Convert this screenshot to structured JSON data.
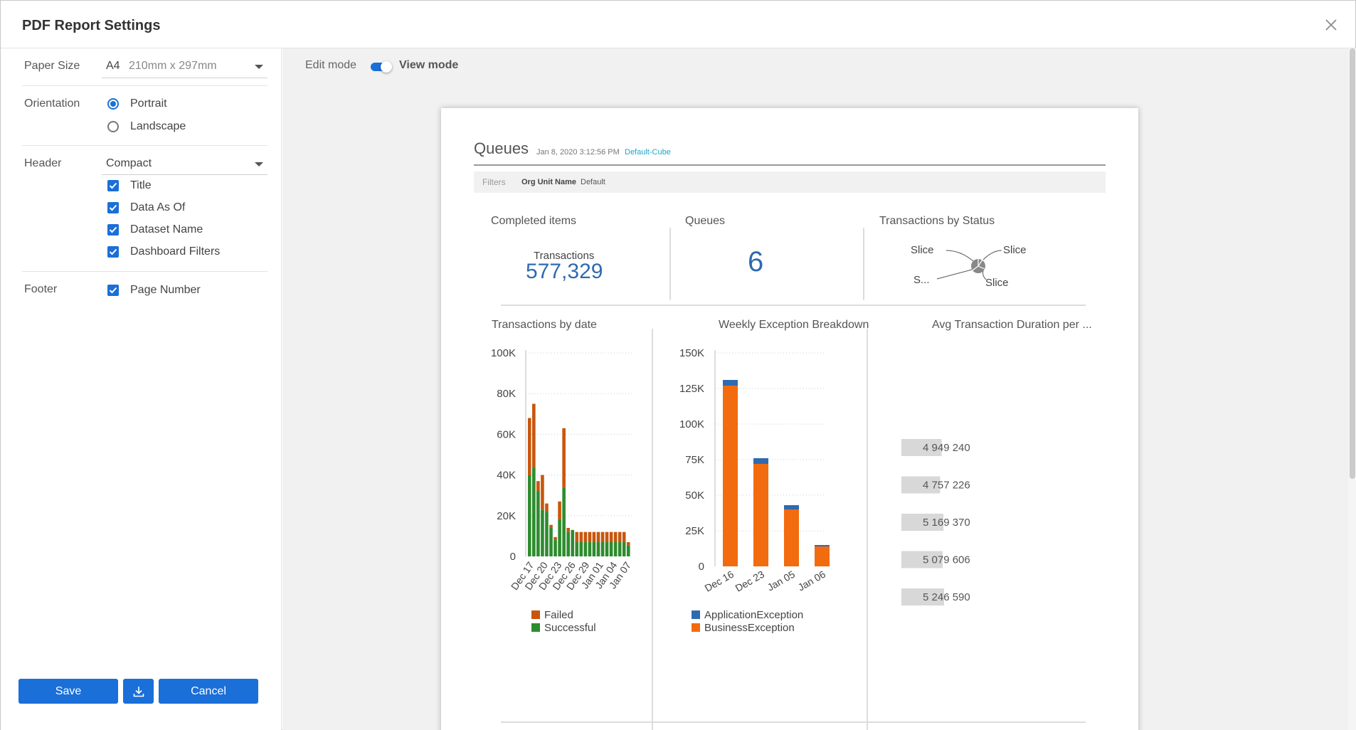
{
  "dialog": {
    "title": "PDF Report Settings"
  },
  "settings": {
    "paper_size": {
      "label": "Paper Size",
      "value": "A4",
      "detail": "210mm x 297mm"
    },
    "orientation": {
      "label": "Orientation",
      "options": [
        {
          "label": "Portrait",
          "selected": true
        },
        {
          "label": "Landscape",
          "selected": false
        }
      ]
    },
    "header": {
      "label": "Header",
      "value": "Compact",
      "options": [
        {
          "label": "Title",
          "checked": true
        },
        {
          "label": "Data As Of",
          "checked": true
        },
        {
          "label": "Dataset Name",
          "checked": true
        },
        {
          "label": "Dashboard Filters",
          "checked": true
        }
      ]
    },
    "footer": {
      "label": "Footer",
      "options": [
        {
          "label": "Page Number",
          "checked": true
        }
      ]
    }
  },
  "actions": {
    "save_label": "Save",
    "download_icon": "download-icon",
    "cancel_label": "Cancel"
  },
  "preview": {
    "edit_mode_label": "Edit mode",
    "view_mode_label": "View mode",
    "toggle_state": "view"
  },
  "report": {
    "title": "Queues",
    "date": "Jan 8, 2020 3:12:56 PM",
    "dataset": "Default-Cube",
    "filters_label": "Filters",
    "filter_name": "Org Unit Name",
    "filter_value": "Default",
    "kpis": [
      {
        "title": "Completed items",
        "caption": "Transactions",
        "value": "577,329"
      },
      {
        "title": "Queues",
        "value": "6"
      }
    ],
    "status_tile": {
      "title": "Transactions by Status",
      "labels": [
        "Slice",
        "Slice",
        "S...",
        "Slice"
      ]
    },
    "duration_tile": {
      "title": "Avg Transaction Duration per ..."
    }
  },
  "colors": {
    "accent": "#1a6fd8",
    "failed": "#c8560d",
    "successful": "#2e8b2e",
    "app_exception": "#2f6ab1",
    "business_exception": "#f26b0f",
    "dataset_link": "#1ba6c8"
  },
  "chart_data": [
    {
      "type": "bar",
      "stacked": true,
      "title": "Transactions by date",
      "x_tick_labels": [
        "Dec 17",
        "Dec 20",
        "Dec 23",
        "Dec 26",
        "Dec 29",
        "Jan 01",
        "Jan 04",
        "Jan 07"
      ],
      "y_tick_labels": [
        "100K",
        "80K",
        "60K",
        "40K",
        "20K",
        "0"
      ],
      "ylim": [
        0,
        100000
      ],
      "series": [
        {
          "name": "Failed",
          "color": "#c8560d",
          "values": [
            28000,
            31000,
            5000,
            17000,
            4000,
            1500,
            1500,
            9000,
            29000,
            2000,
            0,
            5000,
            5000,
            5000,
            5000,
            5000,
            5000,
            5000,
            5000,
            5000,
            5000,
            5000,
            5000,
            1500
          ]
        },
        {
          "name": "Successful",
          "color": "#2e8b2e",
          "values": [
            40000,
            44000,
            32000,
            23000,
            22000,
            14000,
            8000,
            18000,
            34000,
            12000,
            13000,
            7000,
            7000,
            7000,
            7000,
            7000,
            7000,
            7000,
            7000,
            7000,
            7000,
            7000,
            7000,
            5500
          ]
        }
      ],
      "legend": "bottom",
      "grid": true
    },
    {
      "type": "bar",
      "stacked": true,
      "title": "Weekly Exception Breakdown",
      "categories": [
        "Dec 16",
        "Dec 23",
        "Jan 05",
        "Jan 06"
      ],
      "y_tick_labels": [
        "150K",
        "125K",
        "100K",
        "75K",
        "50K",
        "25K",
        "0"
      ],
      "ylim": [
        0,
        150000
      ],
      "series": [
        {
          "name": "ApplicationException",
          "color": "#2f6ab1",
          "values": [
            4000,
            4000,
            3000,
            1000
          ]
        },
        {
          "name": "BusinessException",
          "color": "#f26b0f",
          "values": [
            127000,
            72000,
            40000,
            14000
          ]
        }
      ],
      "legend": "bottom",
      "grid": true
    },
    {
      "type": "bar",
      "orientation": "horizontal",
      "title": "Avg Transaction Duration per ...",
      "values": [
        4949240,
        4757226,
        5169370,
        5079606,
        5246590
      ],
      "value_labels": [
        "4 949 240",
        "4 757 226",
        "5 169 370",
        "5 079 606",
        "5 246 590"
      ]
    }
  ]
}
